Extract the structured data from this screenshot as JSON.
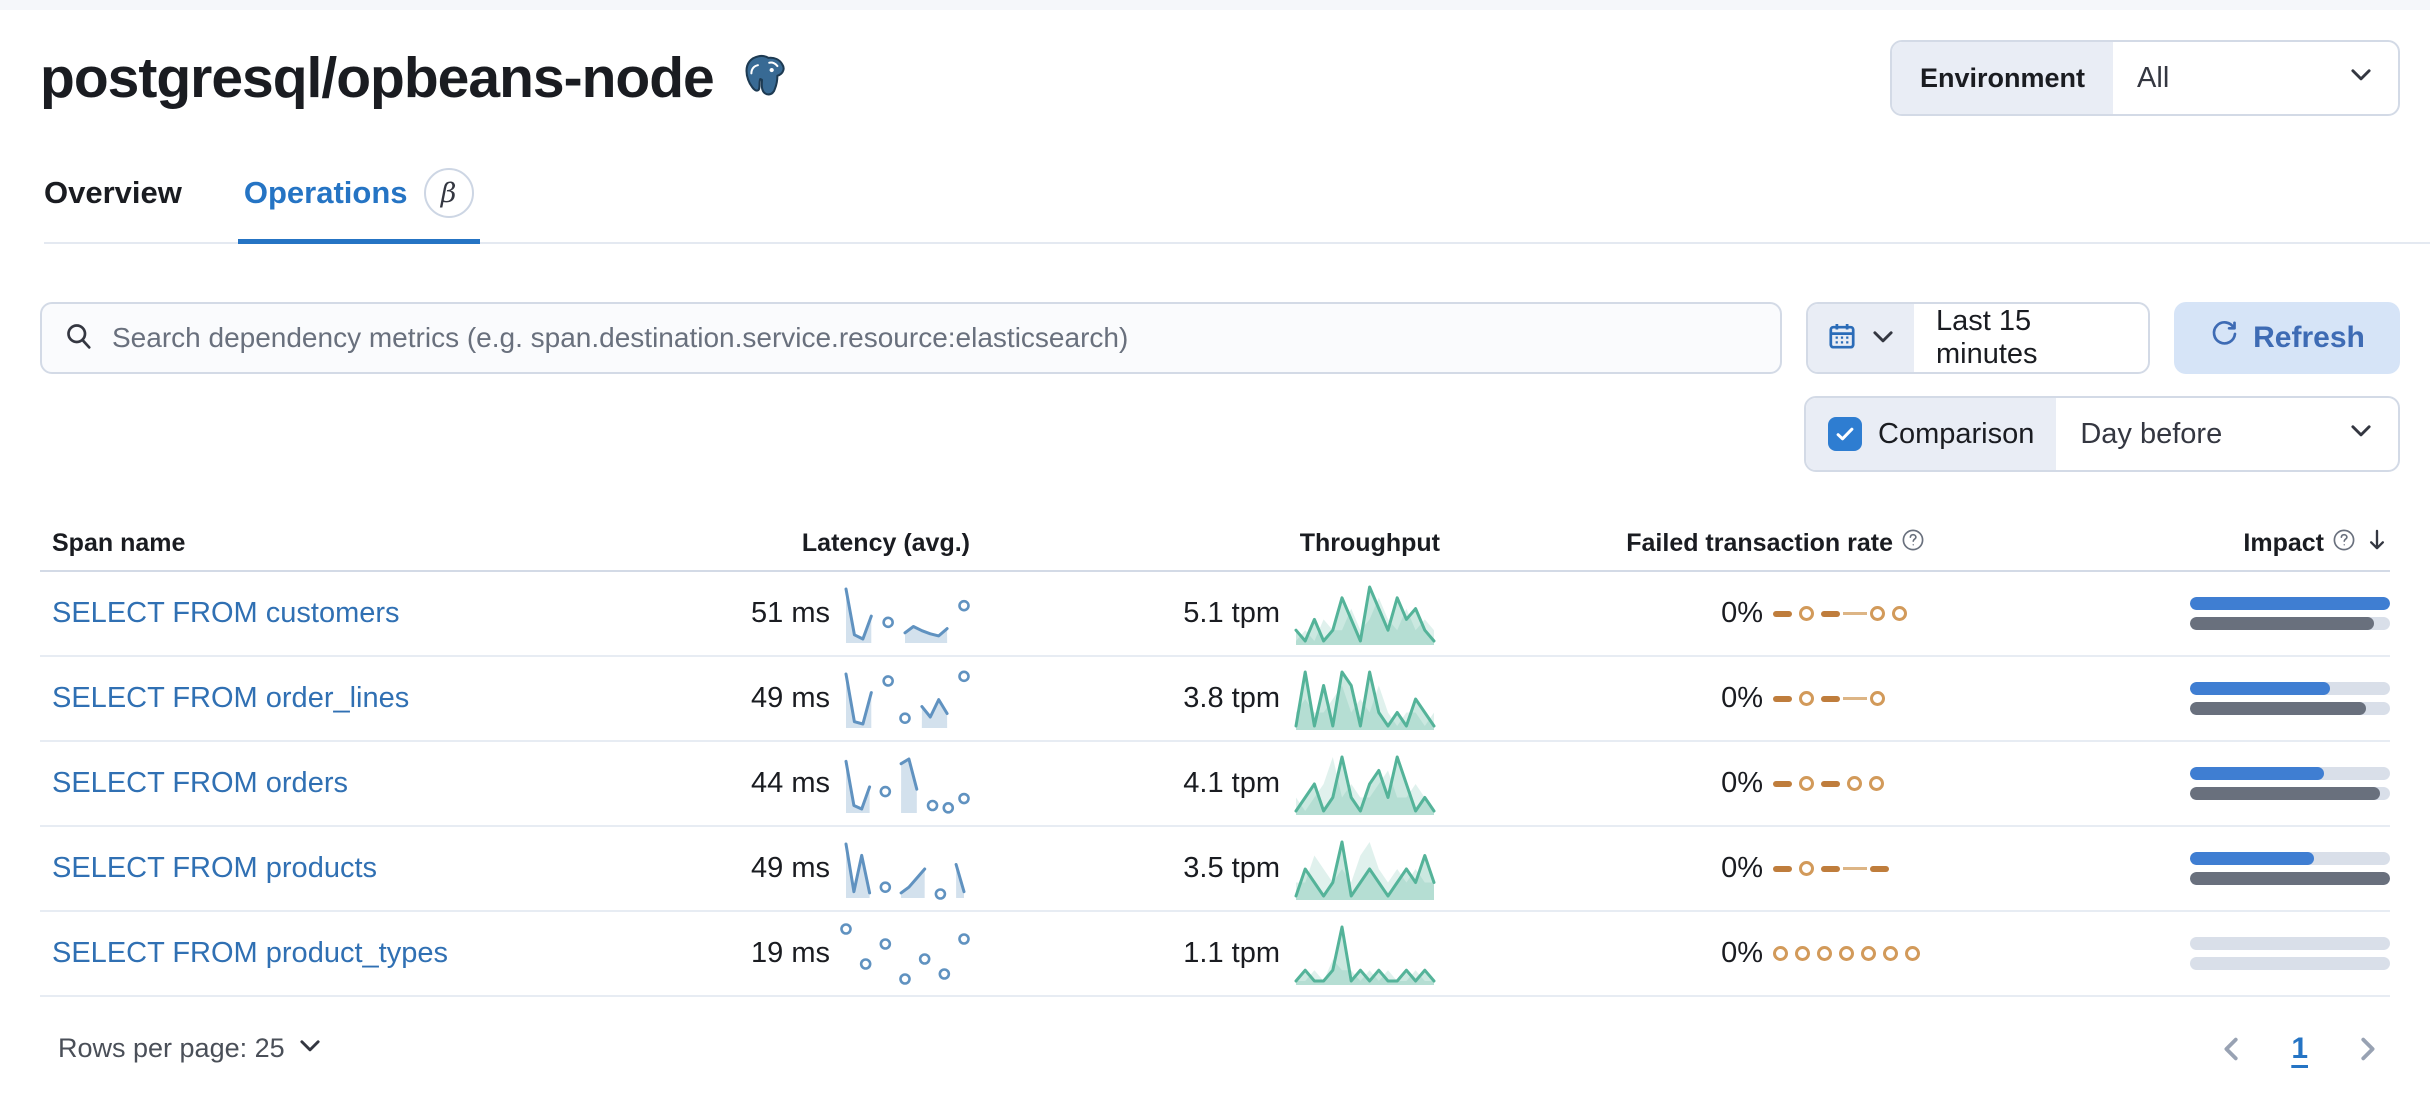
{
  "header": {
    "title": "postgresql/opbeans-node",
    "environment_label": "Environment",
    "environment_value": "All"
  },
  "tabs": [
    {
      "label": "Overview",
      "active": false
    },
    {
      "label": "Operations",
      "active": true,
      "badge": "β"
    }
  ],
  "toolbar": {
    "search_placeholder": "Search dependency metrics (e.g. span.destination.service.resource:elasticsearch)",
    "time_range": "Last 15 minutes",
    "refresh_label": "Refresh",
    "comparison_label": "Comparison",
    "comparison_checked": true,
    "comparison_value": "Day before"
  },
  "table": {
    "columns": {
      "span_name": "Span name",
      "latency": "Latency (avg.)",
      "throughput": "Throughput",
      "failed_rate": "Failed transaction rate",
      "impact": "Impact"
    },
    "rows": [
      {
        "span_name": "SELECT FROM customers",
        "latency": "51 ms",
        "throughput": "5.1 tpm",
        "failed_rate": "0%",
        "latency_spark": [
          52,
          8,
          4,
          26,
          null,
          20,
          null,
          10,
          16,
          12,
          9,
          7,
          14,
          null,
          36
        ],
        "throughput_spark": [
          2,
          1,
          3,
          1,
          2,
          5,
          3,
          1,
          6,
          4,
          2,
          5,
          3,
          4,
          2,
          1
        ],
        "throughput_spark_prev": [
          1,
          2,
          1,
          3,
          2,
          2,
          4,
          2,
          3,
          5,
          3,
          2,
          4,
          2,
          3,
          2
        ],
        "failed_pattern": [
          "dash",
          "dot",
          "dash",
          "line",
          "dot",
          "dot"
        ],
        "impact_current_pct": 100,
        "impact_previous_pct": 92
      },
      {
        "span_name": "SELECT FROM order_lines",
        "latency": "49 ms",
        "throughput": "3.8 tpm",
        "failed_rate": "0%",
        "latency_spark": [
          46,
          5,
          3,
          30,
          null,
          40,
          null,
          8,
          null,
          18,
          9,
          24,
          12,
          null,
          44
        ],
        "throughput_spark": [
          1,
          5,
          1,
          4,
          1,
          5,
          4,
          1,
          5,
          2,
          1,
          2,
          1,
          3,
          2,
          1
        ],
        "throughput_spark_prev": [
          2,
          3,
          2,
          2,
          3,
          4,
          2,
          3,
          2,
          4,
          2,
          1,
          2,
          2,
          1,
          2
        ],
        "failed_pattern": [
          "dash",
          "dot",
          "dash",
          "line",
          "dot"
        ],
        "impact_current_pct": 70,
        "impact_previous_pct": 88
      },
      {
        "span_name": "SELECT FROM orders",
        "latency": "44 ms",
        "throughput": "4.1 tpm",
        "failed_rate": "0%",
        "latency_spark": [
          44,
          6,
          3,
          22,
          null,
          18,
          null,
          42,
          46,
          20,
          null,
          6,
          null,
          4,
          null,
          12
        ],
        "throughput_spark": [
          1,
          2,
          3,
          1,
          2,
          5,
          2,
          1,
          3,
          4,
          2,
          5,
          3,
          1,
          2,
          1
        ],
        "throughput_spark_prev": [
          2,
          1,
          2,
          3,
          5,
          2,
          3,
          2,
          2,
          3,
          4,
          2,
          2,
          3,
          2,
          1
        ],
        "failed_pattern": [
          "dash",
          "dot",
          "dash",
          "dot",
          "dot"
        ],
        "impact_current_pct": 67,
        "impact_previous_pct": 95
      },
      {
        "span_name": "SELECT FROM products",
        "latency": "49 ms",
        "throughput": "3.5 tpm",
        "failed_rate": "0%",
        "latency_spark": [
          48,
          6,
          38,
          5,
          null,
          10,
          null,
          5,
          10,
          18,
          26,
          null,
          4,
          null,
          30,
          6
        ],
        "throughput_spark": [
          1,
          3,
          2,
          1,
          2,
          5,
          1,
          2,
          3,
          2,
          1,
          2,
          3,
          2,
          4,
          2
        ],
        "throughput_spark_prev": [
          2,
          2,
          4,
          3,
          2,
          3,
          2,
          4,
          5,
          3,
          2,
          3,
          2,
          3,
          2,
          2
        ],
        "failed_pattern": [
          "dash",
          "dot",
          "dash",
          "line",
          "dash"
        ],
        "impact_current_pct": 62,
        "impact_previous_pct": 100
      },
      {
        "span_name": "SELECT FROM product_types",
        "latency": "19 ms",
        "throughput": "1.1 tpm",
        "failed_rate": "0%",
        "latency_spark": [
          16,
          null,
          9,
          null,
          13,
          null,
          6,
          null,
          10,
          null,
          7,
          null,
          14
        ],
        "throughput_spark": [
          1,
          2,
          1,
          1,
          2,
          6,
          1,
          2,
          1,
          2,
          1,
          1,
          2,
          1,
          2,
          1
        ],
        "throughput_spark_prev": [
          1,
          1,
          2,
          1,
          3,
          2,
          2,
          1,
          2,
          1,
          2,
          1,
          1,
          2,
          1,
          1
        ],
        "failed_pattern": [
          "dot",
          "dot",
          "dot",
          "dot",
          "dot",
          "dot",
          "dot"
        ],
        "impact_current_pct": 0,
        "impact_previous_pct": 0
      }
    ]
  },
  "pagination": {
    "rows_per_page_label": "Rows per page: 25",
    "current_page": "1"
  },
  "colors": {
    "link_blue": "#3070b3",
    "tab_active_blue": "#2574c4",
    "primary_checkbox": "#2e7dd1",
    "refresh_bg": "#d6e4f7",
    "refresh_text": "#3e6bb4",
    "segment_bg": "#e9edf5",
    "border": "#d3dae6",
    "latency_spark_line": "#6092c0",
    "latency_spark_fill": "rgba(96,146,192,0.28)",
    "throughput_spark_line": "#54b399",
    "throughput_spark_fill": "rgba(84,179,153,0.30)",
    "throughput_spark_prev_fill": "rgba(84,179,153,0.18)",
    "failed_spark_orange": "#bf7d3c",
    "impact_bar_current": "#3f7ed2",
    "impact_bar_previous": "#69707d",
    "impact_track": "#d9dfe9"
  }
}
